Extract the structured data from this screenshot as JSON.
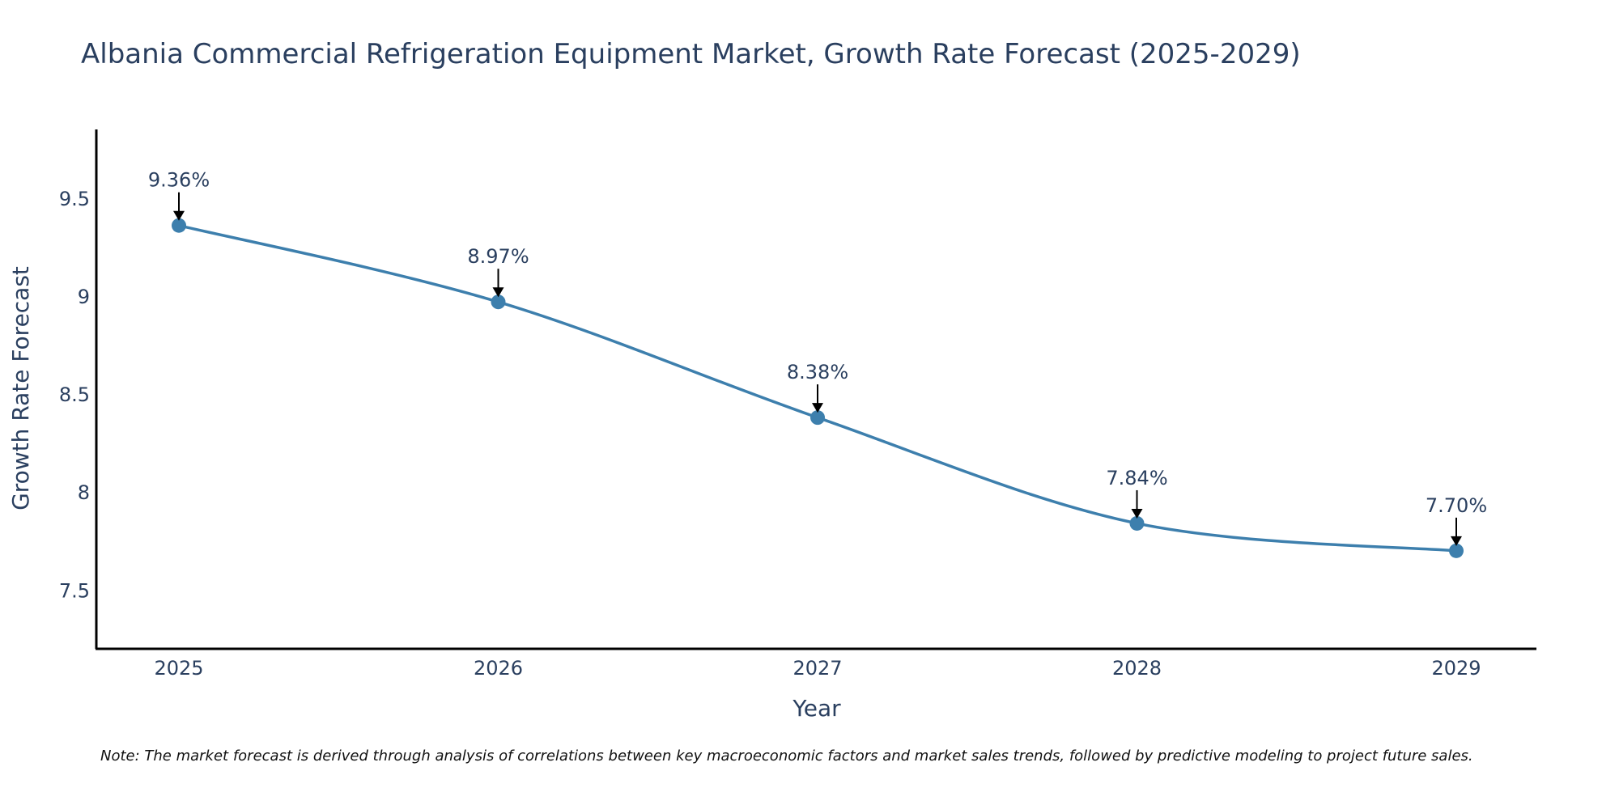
{
  "chart_data": {
    "type": "line",
    "title": "Albania Commercial Refrigeration Equipment Market, Growth Rate Forecast (2025-2029)",
    "xlabel": "Year",
    "ylabel": "Growth Rate Forecast",
    "categories": [
      "2025",
      "2026",
      "2027",
      "2028",
      "2029"
    ],
    "values": [
      9.36,
      8.97,
      8.38,
      7.84,
      7.7
    ],
    "data_labels": [
      "9.36%",
      "8.97%",
      "8.38%",
      "7.84%",
      "7.70%"
    ],
    "yticks": [
      7.5,
      8,
      8.5,
      9,
      9.5
    ],
    "ytick_labels": [
      "7.5",
      "8",
      "8.5",
      "9",
      "9.5"
    ],
    "ylim": [
      7.2,
      9.85
    ],
    "grid": false,
    "line_color": "#3d7fad",
    "marker_color": "#3d7fad",
    "note": "Note: The market forecast is derived through analysis of correlations between key macroeconomic factors and market sales trends, followed by predictive modeling to project future sales."
  }
}
